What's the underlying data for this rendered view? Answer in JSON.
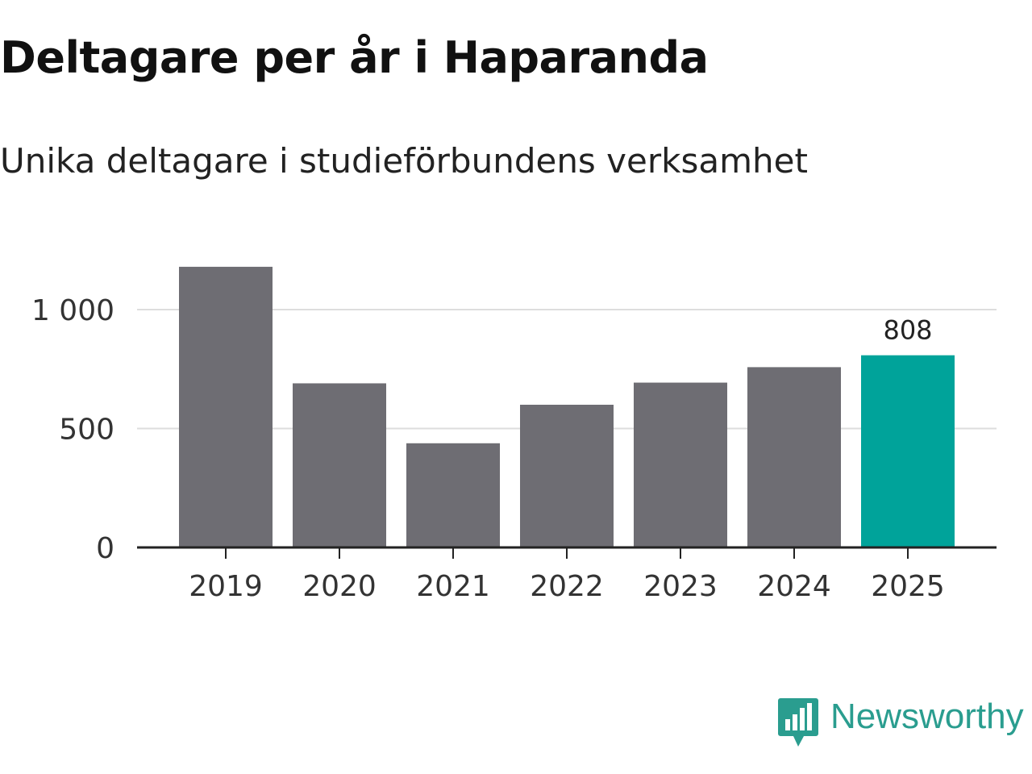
{
  "header": {
    "title": "Deltagare per år i Haparanda",
    "subtitle": "Unika deltagare i studieförbundens verksamhet"
  },
  "brand": {
    "name": "Newsworthy",
    "icon": "bar-chart-speech-bubble-icon",
    "color": "#2a9d8f"
  },
  "chart_data": {
    "type": "bar",
    "title": "Deltagare per år i Haparanda",
    "subtitle": "Unika deltagare i studieförbundens verksamhet",
    "xlabel": "",
    "ylabel": "",
    "categories": [
      "2019",
      "2020",
      "2021",
      "2022",
      "2023",
      "2024",
      "2025"
    ],
    "values": [
      1180,
      690,
      438,
      600,
      693,
      758,
      808
    ],
    "ylim": [
      0,
      1200
    ],
    "yticks": [
      0,
      500,
      1000
    ],
    "ytick_labels": [
      "0",
      "500",
      "1 000"
    ],
    "grid": true,
    "highlight_index": 6,
    "data_labels": [
      {
        "index": 6,
        "text": "808"
      }
    ],
    "colors": {
      "bar": "#6e6d73",
      "highlight": "#00a39a",
      "grid": "#dddddd",
      "axis": "#222222",
      "tick_text": "#333333"
    }
  }
}
